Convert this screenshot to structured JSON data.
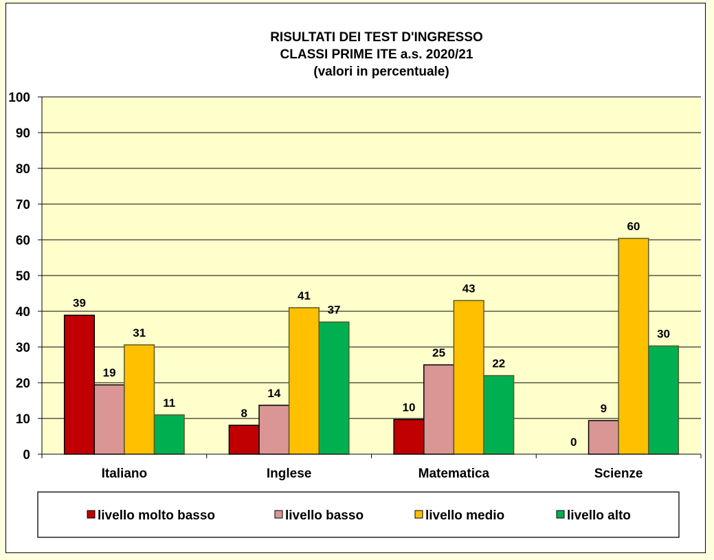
{
  "chart_data": {
    "type": "bar",
    "title": [
      "RISULTATI DEI TEST D'INGRESSO",
      "CLASSI PRIME  ITE a.s. 2020/21",
      "(valori  in  percentuale)"
    ],
    "categories": [
      "Italiano",
      "Inglese",
      "Matematica",
      "Scienze"
    ],
    "series": [
      {
        "name": "livello molto  basso",
        "color": "#C00000",
        "values": [
          38.9,
          8.1,
          9.7,
          0
        ]
      },
      {
        "name": "livello basso",
        "color": "#D99694",
        "values": [
          19.4,
          13.7,
          25,
          9.4
        ]
      },
      {
        "name": "livello medio",
        "color": "#FFC000",
        "values": [
          30.6,
          41,
          43,
          60.4
        ]
      },
      {
        "name": "livello alto",
        "color": "#00B050",
        "values": [
          11,
          37,
          22,
          30.3
        ]
      }
    ],
    "data_labels": [
      [
        "39",
        "8",
        "10",
        "0"
      ],
      [
        "19",
        "14",
        "25",
        "9"
      ],
      [
        "31",
        "41",
        "43",
        "60"
      ],
      [
        "11",
        "37",
        "22",
        "30"
      ]
    ],
    "ylim": [
      0,
      100
    ],
    "yticks": [
      "0",
      "10",
      "20",
      "30",
      "40",
      "50",
      "60",
      "70",
      "80",
      "90",
      "100"
    ],
    "grid": true,
    "plot_background": "#FFFFCC",
    "legend_position": "bottom"
  }
}
